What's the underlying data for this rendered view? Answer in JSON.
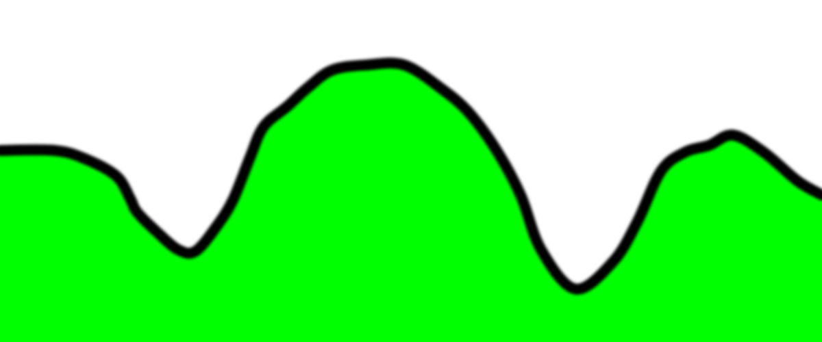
{
  "scene": {
    "type": "terrain-profile",
    "sky_color": "#ffffff",
    "ground_color": "#00ff00",
    "ridge_color": "#000000",
    "profile_y_from_top_fraction": [
      [
        0.0,
        0.44
      ],
      [
        0.0667,
        0.44
      ],
      [
        0.1042,
        0.465
      ],
      [
        0.1417,
        0.515
      ],
      [
        0.1583,
        0.58
      ],
      [
        0.1667,
        0.62
      ],
      [
        0.1917,
        0.68
      ],
      [
        0.2167,
        0.73
      ],
      [
        0.2375,
        0.735
      ],
      [
        0.2625,
        0.665
      ],
      [
        0.2833,
        0.585
      ],
      [
        0.3042,
        0.46
      ],
      [
        0.3208,
        0.37
      ],
      [
        0.35,
        0.31
      ],
      [
        0.375,
        0.255
      ],
      [
        0.4042,
        0.205
      ],
      [
        0.4458,
        0.19
      ],
      [
        0.4917,
        0.19
      ],
      [
        0.5375,
        0.26
      ],
      [
        0.5708,
        0.33
      ],
      [
        0.6042,
        0.44
      ],
      [
        0.6333,
        0.57
      ],
      [
        0.6583,
        0.73
      ],
      [
        0.7,
        0.845
      ],
      [
        0.7458,
        0.765
      ],
      [
        0.775,
        0.65
      ],
      [
        0.8042,
        0.5
      ],
      [
        0.8333,
        0.445
      ],
      [
        0.8625,
        0.425
      ],
      [
        0.8917,
        0.395
      ],
      [
        0.9292,
        0.445
      ],
      [
        0.9708,
        0.53
      ],
      [
        1.0,
        0.57
      ]
    ]
  }
}
